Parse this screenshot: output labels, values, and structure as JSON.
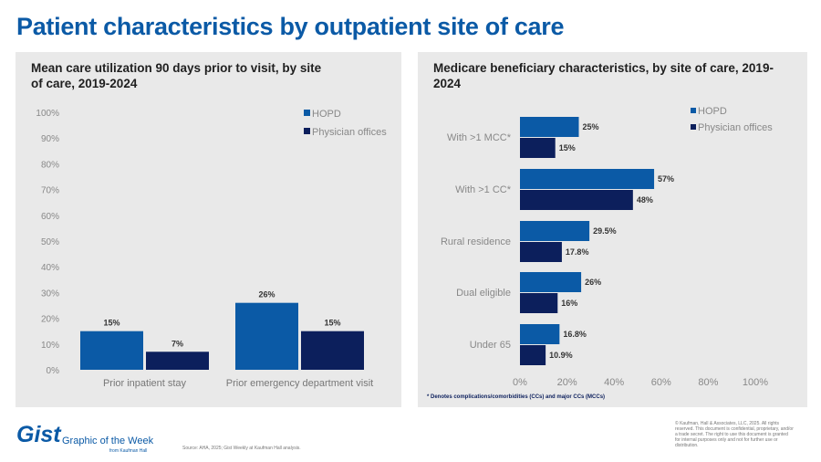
{
  "title": "Patient characteristics by outpatient site of care",
  "colors": {
    "HOPD": "#0b5aa6",
    "Physician offices": "#0c1f5c"
  },
  "chart_data": [
    {
      "type": "bar",
      "title": "Mean care utilization 90 days prior to visit, by site of care, 2019-2024",
      "categories": [
        "Prior inpatient stay",
        "Prior emergency department visit"
      ],
      "series": [
        {
          "name": "HOPD",
          "values": [
            15,
            26
          ]
        },
        {
          "name": "Physician offices",
          "values": [
            7,
            15
          ]
        }
      ],
      "ylim": [
        0,
        100
      ],
      "yticks": [
        "0%",
        "10%",
        "20%",
        "30%",
        "40%",
        "50%",
        "60%",
        "70%",
        "80%",
        "90%",
        "100%"
      ],
      "data_labels": [
        [
          "15%",
          "26%"
        ],
        [
          "7%",
          "15%"
        ]
      ],
      "legend": "top-right",
      "grid": false
    },
    {
      "type": "bar",
      "orientation": "horizontal",
      "title": "Medicare beneficiary characteristics, by site of care, 2019-2024",
      "categories": [
        "With >1 MCC*",
        "With >1 CC*",
        "Rural residence",
        "Dual eligible",
        "Under 65"
      ],
      "series": [
        {
          "name": "HOPD",
          "values": [
            25,
            57,
            29.5,
            26,
            16.8
          ]
        },
        {
          "name": "Physician offices",
          "values": [
            15,
            48,
            17.8,
            16,
            10.9
          ]
        }
      ],
      "xlim": [
        0,
        100
      ],
      "xticks": [
        "0%",
        "20%",
        "40%",
        "60%",
        "80%",
        "100%"
      ],
      "data_labels": [
        [
          "25%",
          "57%",
          "29.5%",
          "26%",
          "16.8%"
        ],
        [
          "15%",
          "48%",
          "17.8%",
          "16%",
          "10.9%"
        ]
      ],
      "legend": "top-right",
      "grid": false,
      "footnote": "* Denotes complications/comorbidities (CCs) and major CCs (MCCs)"
    }
  ],
  "footer": {
    "logo": "Gist",
    "tagline": "Graphic of the Week",
    "from": "from Kaufman Hall",
    "source": "Source: AHA, 2025; Gist Weekly at Kaufman Hall analysis.",
    "copyright": "© Kaufman, Hall & Associates, LLC, 2025. All rights reserved. This document is confidential, proprietary, and/or a trade secret. The right to use this document is granted for internal purposes only and not for further use or distribution."
  }
}
